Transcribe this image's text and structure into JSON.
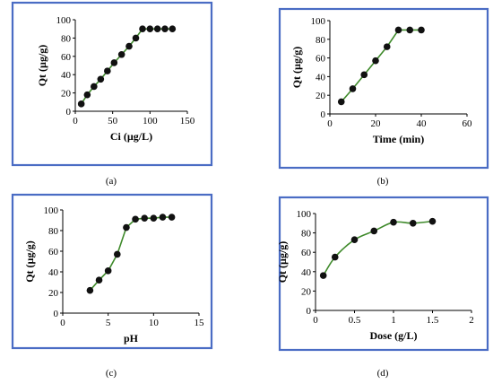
{
  "chart_data": [
    {
      "type": "line",
      "panel_label": "(a)",
      "xlabel": "Ci (µg/L)",
      "ylabel": "Qt (µg/g)",
      "xlim": [
        0,
        150
      ],
      "ylim": [
        0,
        100
      ],
      "xticks": [
        0,
        50,
        100,
        150
      ],
      "yticks": [
        0,
        20,
        40,
        60,
        80,
        100
      ],
      "markers": true,
      "x": [
        8,
        16,
        25,
        34,
        43,
        52,
        62,
        72,
        81,
        90,
        100,
        110,
        120,
        130
      ],
      "y": [
        8,
        18,
        27,
        35,
        44,
        53,
        62,
        71,
        80,
        90,
        90,
        90,
        90,
        90
      ]
    },
    {
      "type": "line",
      "panel_label": "(b)",
      "xlabel": "Time (min)",
      "ylabel": "Qt (µg/g)",
      "xlim": [
        0,
        60
      ],
      "ylim": [
        0,
        100
      ],
      "xticks": [
        0,
        20,
        40,
        60
      ],
      "yticks": [
        0,
        20,
        40,
        60,
        80,
        100
      ],
      "markers": true,
      "x": [
        5,
        10,
        15,
        20,
        25,
        30,
        35,
        40
      ],
      "y": [
        13,
        27,
        42,
        57,
        72,
        90,
        90,
        90
      ]
    },
    {
      "type": "line",
      "panel_label": "(c)",
      "xlabel": "pH",
      "ylabel": "Qt (µg/g)",
      "xlim": [
        0,
        15
      ],
      "ylim": [
        0,
        100
      ],
      "xticks": [
        0,
        5,
        10,
        15
      ],
      "yticks": [
        0,
        20,
        40,
        60,
        80,
        100
      ],
      "markers": true,
      "x": [
        3,
        4,
        5,
        6,
        7,
        8,
        9,
        10,
        11,
        12
      ],
      "y": [
        22,
        32,
        41,
        57,
        83,
        91,
        92,
        92,
        93,
        93
      ]
    },
    {
      "type": "line",
      "panel_label": "(d)",
      "xlabel": "Dose (g/L)",
      "ylabel": "Qt (µg/g)",
      "xlim": [
        0,
        2
      ],
      "ylim": [
        0,
        100
      ],
      "xticks": [
        0,
        0.5,
        1,
        1.5,
        2
      ],
      "yticks": [
        0,
        20,
        40,
        60,
        80,
        100
      ],
      "markers": true,
      "smooth": true,
      "x": [
        0.1,
        0.25,
        0.5,
        0.75,
        1,
        1.25,
        1.5
      ],
      "y": [
        36,
        55,
        73,
        82,
        91,
        90,
        92
      ]
    }
  ],
  "colors": {
    "frame": "#4a6cc4",
    "line": "#3f8a2b",
    "marker": "#111111"
  }
}
